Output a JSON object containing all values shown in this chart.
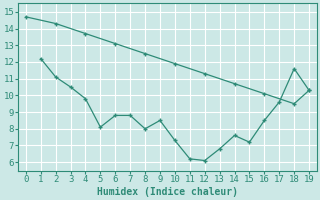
{
  "line1_x": [
    0,
    2,
    4,
    6,
    8,
    10,
    12,
    14,
    16,
    18,
    19
  ],
  "line1_y": [
    14.7,
    14.3,
    13.7,
    13.1,
    12.5,
    11.9,
    11.3,
    10.7,
    10.1,
    9.5,
    10.3
  ],
  "line2_x": [
    1,
    2,
    3,
    4,
    5,
    6,
    7,
    8,
    9,
    10,
    11,
    12,
    13,
    14,
    15,
    16,
    17,
    18,
    19
  ],
  "line2_y": [
    12.2,
    11.1,
    10.5,
    9.8,
    8.1,
    8.8,
    8.8,
    8.0,
    8.5,
    7.3,
    6.2,
    6.1,
    6.8,
    7.6,
    7.2,
    8.5,
    9.6,
    11.6,
    10.3
  ],
  "color": "#2e8b77",
  "bg_color": "#cce8e6",
  "grid_color": "#b0d8d5",
  "xlabel": "Humidex (Indice chaleur)",
  "xlim": [
    -0.5,
    19.5
  ],
  "ylim": [
    5.5,
    15.5
  ],
  "xticks": [
    0,
    1,
    2,
    3,
    4,
    5,
    6,
    7,
    8,
    9,
    10,
    11,
    12,
    13,
    14,
    15,
    16,
    17,
    18,
    19
  ],
  "yticks": [
    6,
    7,
    8,
    9,
    10,
    11,
    12,
    13,
    14,
    15
  ],
  "label_fontsize": 7,
  "tick_fontsize": 6.5
}
